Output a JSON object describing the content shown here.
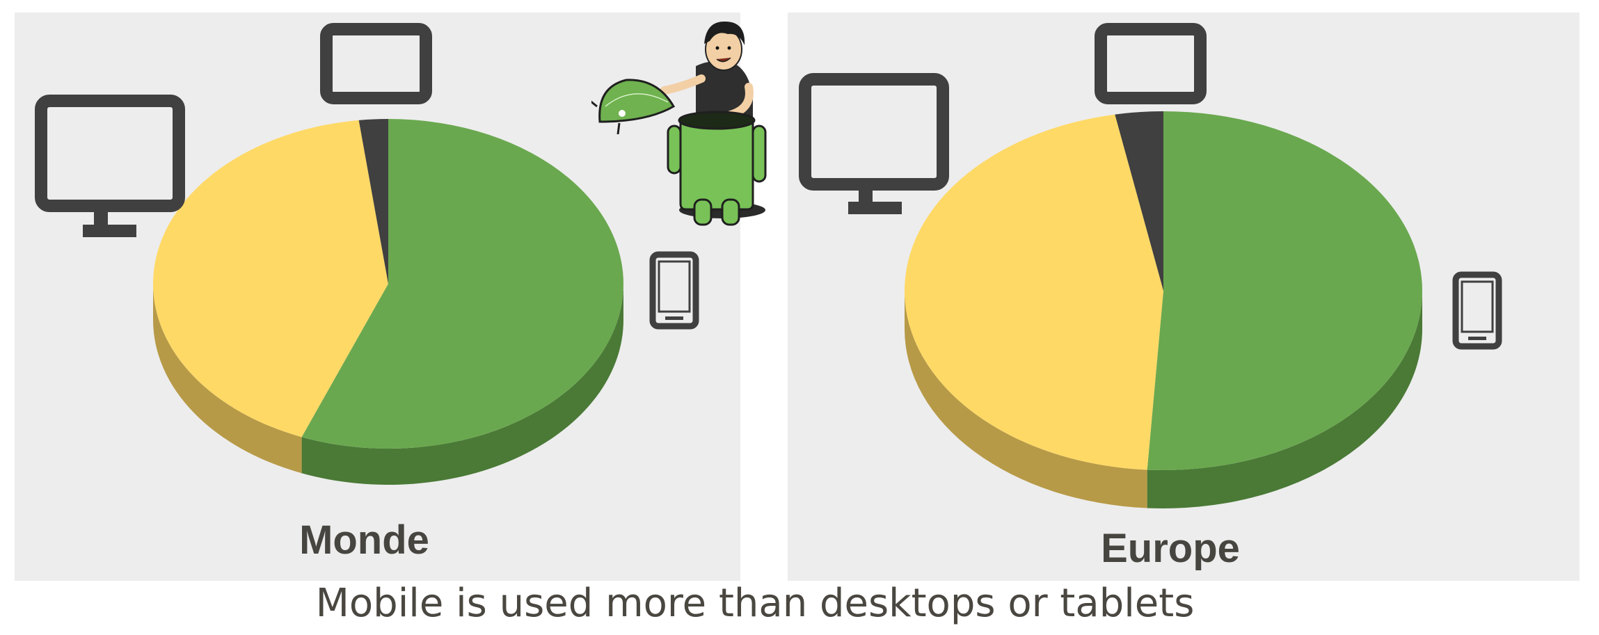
{
  "caption": "Mobile is used more than desktops or tablets",
  "colors": {
    "mobile": "#6aa84f",
    "mobile_side": "#4a7a36",
    "desktop": "#ffd966",
    "desktop_side": "#b79a47",
    "tablet": "#404040",
    "icon": "#404040",
    "panel_bg": "#ededed"
  },
  "legend_icons": {
    "desktop": "desktop-monitor-icon",
    "tablet": "tablet-icon",
    "mobile": "smartphone-icon"
  },
  "mascot": "android-robot-mascot",
  "chart_data": [
    {
      "type": "pie",
      "title": "Monde",
      "categories": [
        "mobile",
        "desktop",
        "tablet"
      ],
      "values": [
        56,
        42,
        2
      ],
      "start_angle_deg": 0,
      "direction": "clockwise"
    },
    {
      "type": "pie",
      "title": "Europe",
      "categories": [
        "mobile",
        "desktop",
        "tablet"
      ],
      "values": [
        51,
        46,
        3
      ],
      "start_angle_deg": 0,
      "direction": "clockwise"
    }
  ]
}
